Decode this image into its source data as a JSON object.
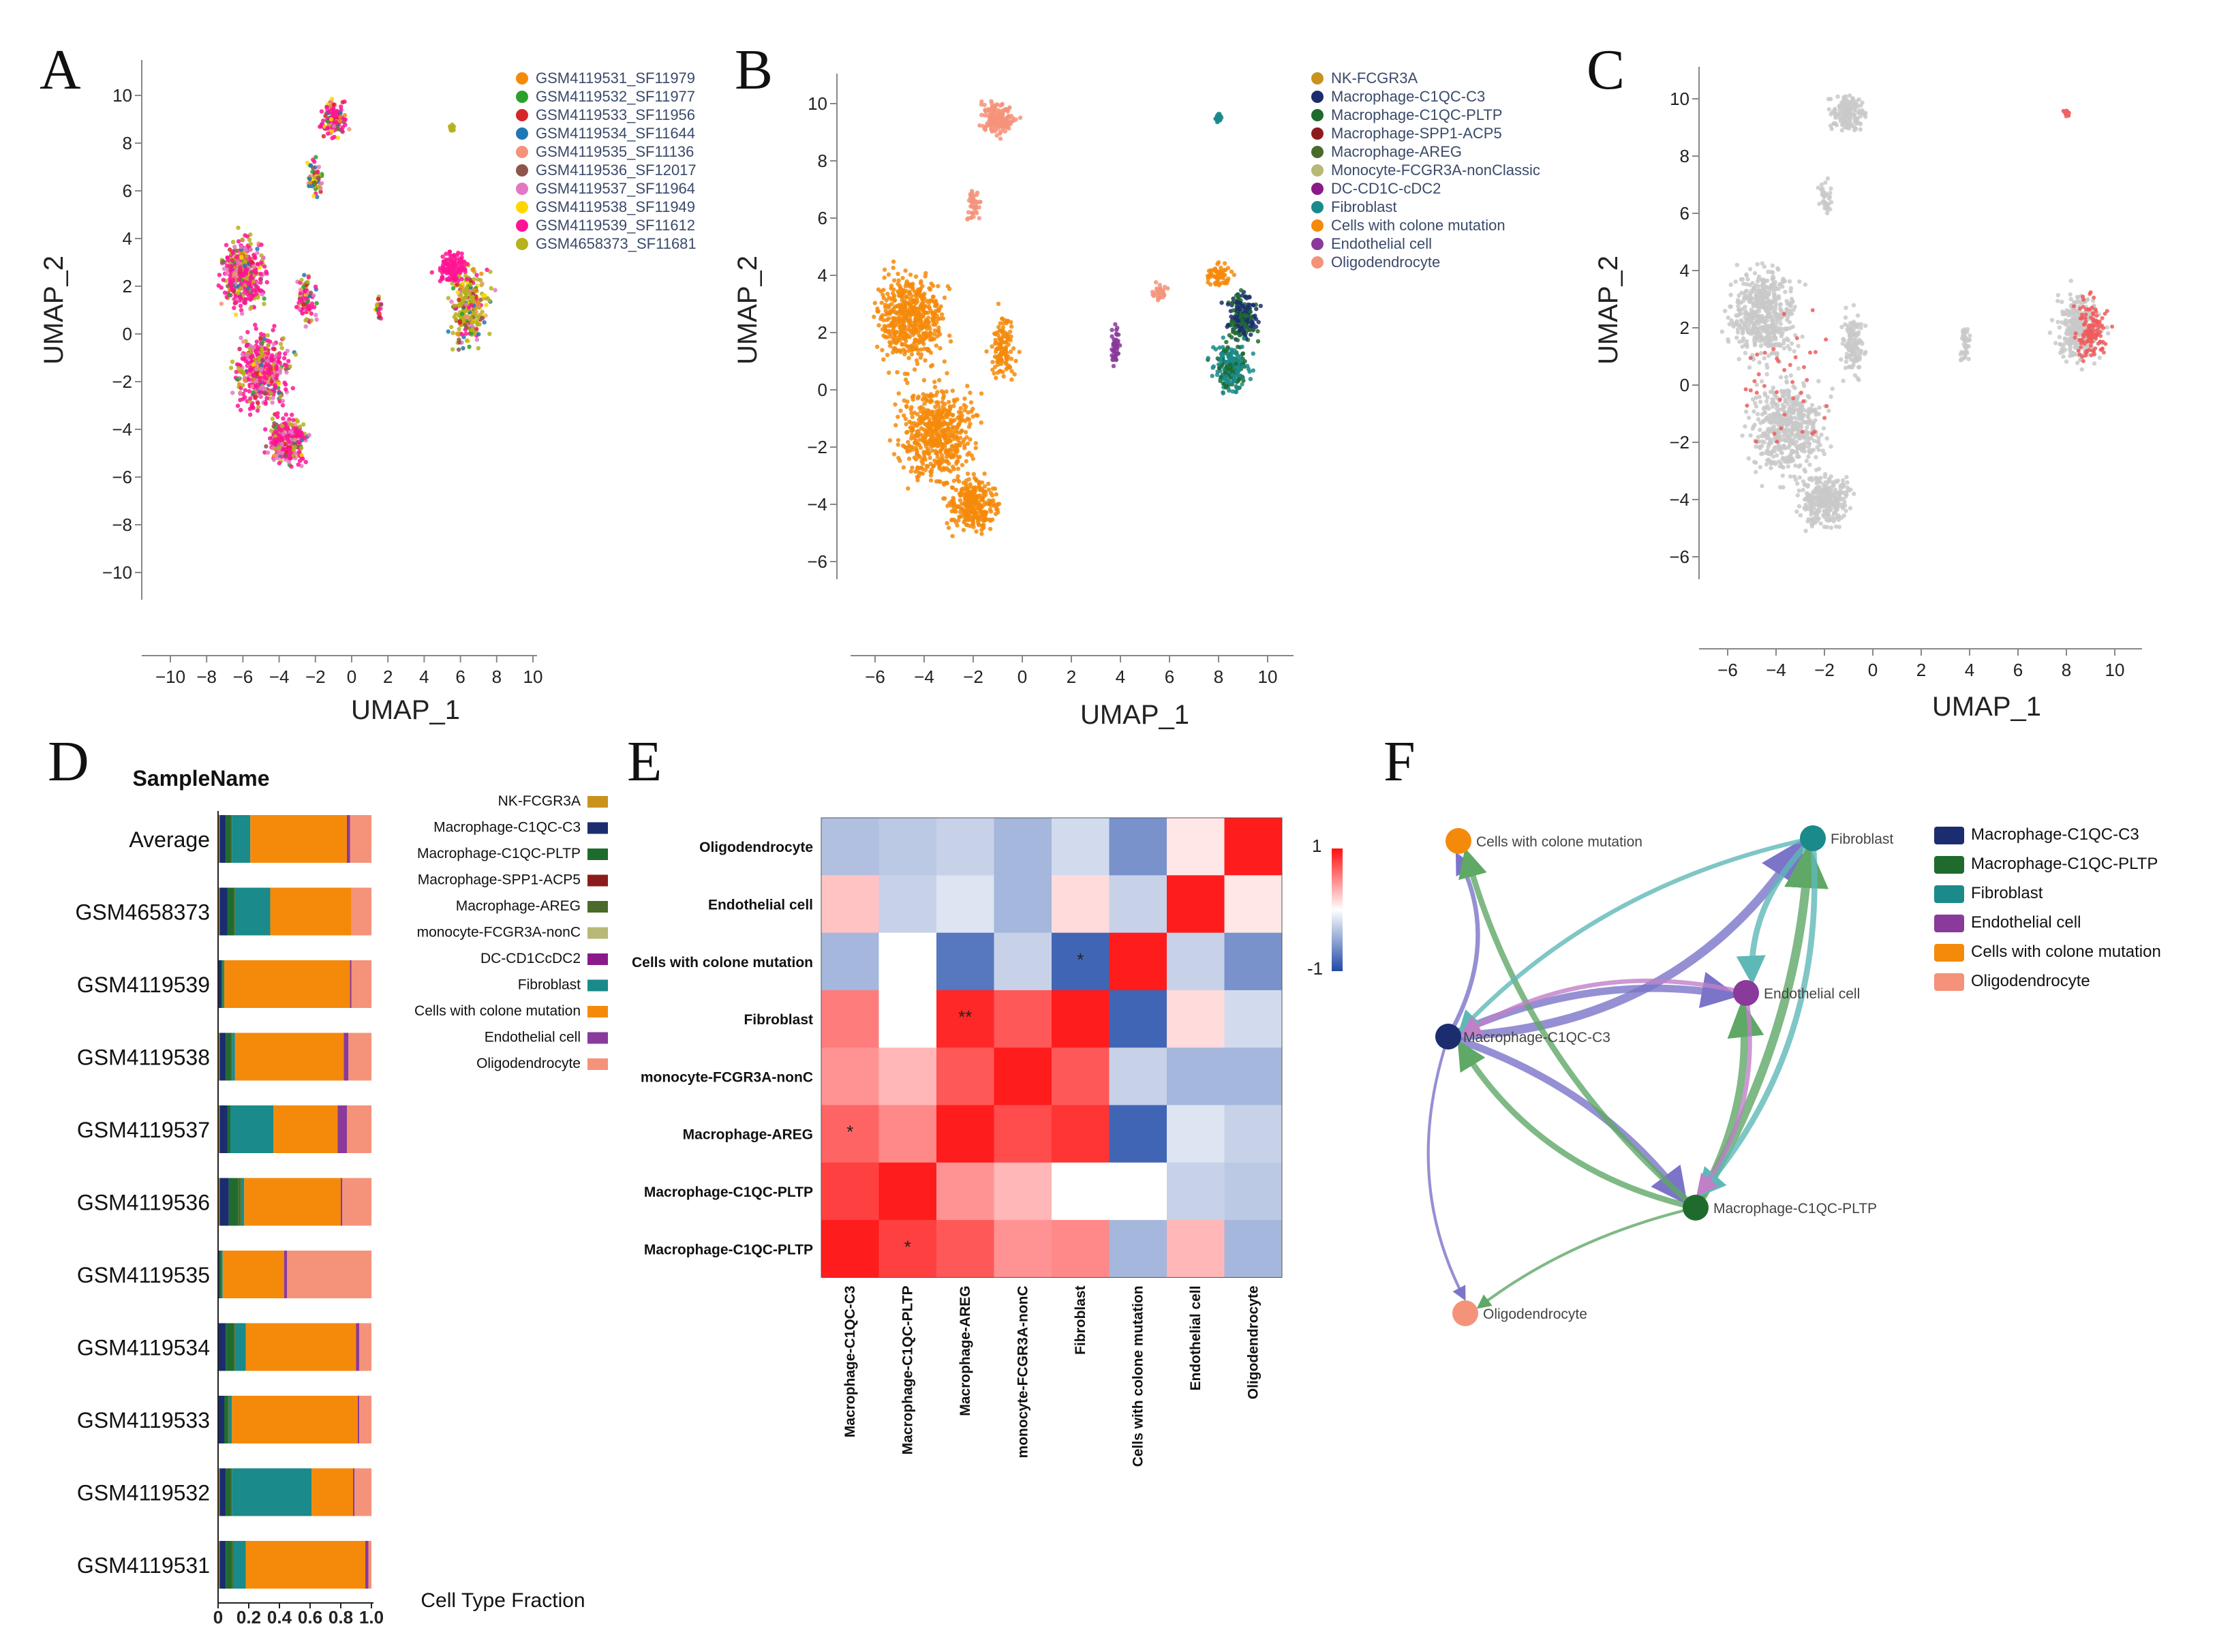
{
  "panels": [
    "A",
    "B",
    "C",
    "D",
    "E",
    "F"
  ],
  "colors": {
    "nk": "#c8921c",
    "c1qc_c3": "#1b2d6e",
    "c1qc_pltp": "#1f6b2e",
    "spp1": "#8c1c1c",
    "areg": "#4a6a2a",
    "mono": "#b8b878",
    "dc": "#8a1a8a",
    "fibro": "#1a8a8a",
    "cwcm": "#f58a0a",
    "endo": "#8a3a9a",
    "oligo": "#f4937a"
  },
  "chart_data": [
    {
      "panel": "A",
      "type": "scatter",
      "xlabel": "UMAP_1",
      "ylabel": "UMAP_2",
      "xlim": [
        -12,
        11
      ],
      "ylim": [
        -11,
        11
      ],
      "xticks": [
        -10,
        -8,
        -6,
        -4,
        -2,
        0,
        2,
        4,
        6,
        8,
        10
      ],
      "xtick_labels": [
        "−10",
        "−8",
        "−6",
        "−4",
        "−2",
        "0",
        "2",
        "4",
        "6",
        "8",
        "10"
      ],
      "yticks": [
        10,
        8,
        6,
        4,
        2,
        0,
        -2,
        -4,
        -6,
        -8,
        -10
      ],
      "ytick_labels": [
        "10",
        "8",
        "6",
        "4",
        "2",
        "0",
        "−2",
        "−4",
        "−6",
        "−8",
        "−10"
      ],
      "legend": [
        {
          "label": "GSM4119531_SF11979",
          "color": "#f58a0a"
        },
        {
          "label": "GSM4119532_SF11977",
          "color": "#2ca02c"
        },
        {
          "label": "GSM4119533_SF11956",
          "color": "#d62728"
        },
        {
          "label": "GSM4119534_SF11644",
          "color": "#1f77b4"
        },
        {
          "label": "GSM4119535_SF11136",
          "color": "#f4937a"
        },
        {
          "label": "GSM4119536_SF12017",
          "color": "#8c564b"
        },
        {
          "label": "GSM4119537_SF11964",
          "color": "#e377c2"
        },
        {
          "label": "GSM4119538_SF11949",
          "color": "#ffd700"
        },
        {
          "label": "GSM4119539_SF11612",
          "color": "#ff1493"
        },
        {
          "label": "GSM4658373_SF11681",
          "color": "#b5b21c"
        }
      ]
    },
    {
      "panel": "B",
      "type": "scatter",
      "xlabel": "UMAP_1",
      "ylabel": "UMAP_2",
      "xlim": [
        -7,
        11
      ],
      "ylim": [
        -7,
        11
      ],
      "xticks": [
        -6,
        -4,
        -2,
        0,
        2,
        4,
        6,
        8,
        10
      ],
      "xtick_labels": [
        "−6",
        "−4",
        "−2",
        "0",
        "2",
        "4",
        "6",
        "8",
        "10"
      ],
      "yticks": [
        10,
        8,
        6,
        4,
        2,
        0,
        -2,
        -4,
        -6
      ],
      "ytick_labels": [
        "10",
        "8",
        "6",
        "4",
        "2",
        "0",
        "−2",
        "−4",
        "−6"
      ],
      "legend": [
        {
          "label": "NK-FCGR3A",
          "color": "#c8921c"
        },
        {
          "label": "Macrophage-C1QC-C3",
          "color": "#1b2d6e"
        },
        {
          "label": "Macrophage-C1QC-PLTP",
          "color": "#1f6b2e"
        },
        {
          "label": "Macrophage-SPP1-ACP5",
          "color": "#8c1c1c"
        },
        {
          "label": "Macrophage-AREG",
          "color": "#4a6a2a"
        },
        {
          "label": "Monocyte-FCGR3A-nonClassic",
          "color": "#b8b878"
        },
        {
          "label": "DC-CD1C-cDC2",
          "color": "#8a1a8a"
        },
        {
          "label": "Fibroblast",
          "color": "#1a8a8a"
        },
        {
          "label": "Cells with colone mutation",
          "color": "#f58a0a"
        },
        {
          "label": "Endothelial cell",
          "color": "#8a3a9a"
        },
        {
          "label": "Oligodendrocyte",
          "color": "#f4937a"
        }
      ]
    },
    {
      "panel": "C",
      "type": "scatter",
      "xlabel": "UMAP_1",
      "ylabel": "UMAP_2",
      "xlim": [
        -7,
        11
      ],
      "ylim": [
        -7,
        11
      ],
      "xticks": [
        -6,
        -4,
        -2,
        0,
        2,
        4,
        6,
        8,
        10
      ],
      "xtick_labels": [
        "−6",
        "−4",
        "−2",
        "0",
        "2",
        "4",
        "6",
        "8",
        "10"
      ],
      "yticks": [
        10,
        8,
        6,
        4,
        2,
        0,
        -2,
        -4,
        -6
      ],
      "ytick_labels": [
        "10",
        "8",
        "6",
        "4",
        "2",
        "0",
        "−2",
        "−4",
        "−6"
      ]
    },
    {
      "panel": "D",
      "type": "bar",
      "orientation": "horizontal",
      "stacked": true,
      "title": "SampleName",
      "xlabel": "Cell Type Fraction",
      "xlim": [
        0,
        1
      ],
      "xticks": [
        0,
        0.2,
        0.4,
        0.6,
        0.8,
        1.0
      ],
      "xtick_labels": [
        "0",
        "0.2",
        "0.4",
        "0.6",
        "0.8",
        "1.0"
      ],
      "categories": [
        "Average",
        "GSM4658373",
        "GSM4119539",
        "GSM4119538",
        "GSM4119537",
        "GSM4119536",
        "GSM4119535",
        "GSM4119534",
        "GSM4119533",
        "GSM4119532",
        "GSM4119531"
      ],
      "series": [
        {
          "name": "NK-FCGR3A",
          "color": "#c8921c",
          "values": [
            0.01,
            0.01,
            0.0,
            0.01,
            0.01,
            0.01,
            0.0,
            0.0,
            0.0,
            0.01,
            0.01
          ]
        },
        {
          "name": "Macrophage-C1QC-C3",
          "color": "#1b2d6e",
          "values": [
            0.04,
            0.05,
            0.02,
            0.04,
            0.05,
            0.06,
            0.01,
            0.05,
            0.04,
            0.04,
            0.04
          ]
        },
        {
          "name": "Macrophage-C1QC-PLTP",
          "color": "#1f6b2e",
          "values": [
            0.03,
            0.04,
            0.01,
            0.03,
            0.02,
            0.06,
            0.01,
            0.05,
            0.02,
            0.03,
            0.04
          ]
        },
        {
          "name": "Macrophage-SPP1-ACP5",
          "color": "#8c1c1c",
          "values": [
            0.0,
            0.0,
            0.0,
            0.0,
            0.0,
            0.0,
            0.0,
            0.0,
            0.0,
            0.0,
            0.0
          ]
        },
        {
          "name": "Macrophage-AREG",
          "color": "#4a6a2a",
          "values": [
            0.01,
            0.01,
            0.0,
            0.01,
            0.0,
            0.02,
            0.0,
            0.01,
            0.01,
            0.01,
            0.01
          ]
        },
        {
          "name": "monocyte-FCGR3A-nonC",
          "color": "#b8b878",
          "values": [
            0.0,
            0.0,
            0.0,
            0.0,
            0.0,
            0.0,
            0.0,
            0.0,
            0.0,
            0.0,
            0.0
          ]
        },
        {
          "name": "DC-CD1CcDC2",
          "color": "#8a1a8a",
          "values": [
            0.0,
            0.0,
            0.0,
            0.0,
            0.0,
            0.0,
            0.0,
            0.0,
            0.0,
            0.0,
            0.0
          ]
        },
        {
          "name": "Fibroblast",
          "color": "#1a8a8a",
          "values": [
            0.12,
            0.23,
            0.01,
            0.02,
            0.28,
            0.02,
            0.01,
            0.07,
            0.02,
            0.52,
            0.08
          ]
        },
        {
          "name": "Cells with colone mutation",
          "color": "#f58a0a",
          "values": [
            0.63,
            0.53,
            0.82,
            0.71,
            0.42,
            0.63,
            0.4,
            0.72,
            0.82,
            0.27,
            0.78
          ]
        },
        {
          "name": "Endothelial cell",
          "color": "#8a3a9a",
          "values": [
            0.02,
            0.0,
            0.01,
            0.03,
            0.06,
            0.01,
            0.02,
            0.02,
            0.01,
            0.01,
            0.02
          ]
        },
        {
          "name": "Oligodendrocyte",
          "color": "#f4937a",
          "values": [
            0.14,
            0.13,
            0.13,
            0.15,
            0.16,
            0.19,
            0.55,
            0.08,
            0.08,
            0.11,
            0.02
          ]
        }
      ]
    },
    {
      "panel": "E",
      "type": "heatmap",
      "rows": [
        "Oligodendrocyte",
        "Endothelial cell",
        "Cells with colone mutation",
        "Fibroblast",
        "monocyte-FCGR3A-nonC",
        "Macrophage-AREG",
        "Macrophage-C1QC-PLTP",
        "Macrophage-C1QC-PLTP"
      ],
      "cols": [
        "Macrophage-C1QC-C3",
        "Macrophage-C1QC-PLTP",
        "Macrophage-AREG",
        "monocyte-FCGR3A-nonC",
        "Fibroblast",
        "Cells with colone mutation",
        "Endothelial cell",
        "Oligodendrocyte"
      ],
      "values": [
        [
          -0.35,
          -0.3,
          -0.25,
          -0.4,
          -0.2,
          -0.6,
          0.1,
          0.95
        ],
        [
          0.25,
          -0.25,
          -0.15,
          -0.4,
          0.15,
          -0.25,
          0.95,
          0.1
        ],
        [
          -0.4,
          0.0,
          -0.75,
          -0.25,
          -0.85,
          0.95,
          -0.25,
          -0.6
        ],
        [
          0.55,
          0.0,
          0.9,
          0.7,
          0.95,
          -0.85,
          0.15,
          -0.2
        ],
        [
          0.45,
          0.3,
          0.7,
          0.95,
          0.7,
          -0.25,
          -0.4,
          -0.4
        ],
        [
          0.65,
          0.5,
          0.95,
          0.75,
          0.85,
          -0.85,
          -0.15,
          -0.25
        ],
        [
          0.8,
          0.95,
          0.45,
          0.3,
          0.0,
          0.0,
          -0.25,
          -0.3
        ],
        [
          0.95,
          0.8,
          0.7,
          0.45,
          0.5,
          -0.4,
          0.3,
          -0.4
        ]
      ],
      "annotations": [
        {
          "row": 2,
          "col": 4,
          "text": "*"
        },
        {
          "row": 3,
          "col": 2,
          "text": "**"
        },
        {
          "row": 5,
          "col": 0,
          "text": "*"
        },
        {
          "row": 7,
          "col": 1,
          "text": "*"
        }
      ],
      "colorbar": {
        "min": -1,
        "max": 1,
        "max_label": "1",
        "min_label": "-1"
      }
    },
    {
      "panel": "F",
      "type": "network",
      "nodes": [
        {
          "id": "cwcm",
          "label": "Cells with colone mutation",
          "color": "#f58a0a"
        },
        {
          "id": "fibro",
          "label": "Fibroblast",
          "color": "#1a8a8a"
        },
        {
          "id": "endo",
          "label": "Endothelial cell",
          "color": "#8a3a9a"
        },
        {
          "id": "c3",
          "label": "Macrophage-C1QC-C3",
          "color": "#1b2d6e"
        },
        {
          "id": "pltp",
          "label": "Macrophage-C1QC-PLTP",
          "color": "#1f6b2e"
        },
        {
          "id": "oligo",
          "label": "Oligodendrocyte",
          "color": "#f4937a"
        }
      ],
      "edges": [
        {
          "from": "c3",
          "to": "fibro",
          "weight": 5
        },
        {
          "from": "c3",
          "to": "endo",
          "weight": 4
        },
        {
          "from": "c3",
          "to": "pltp",
          "weight": 4
        },
        {
          "from": "c3",
          "to": "cwcm",
          "weight": 2
        },
        {
          "from": "c3",
          "to": "oligo",
          "weight": 1
        },
        {
          "from": "pltp",
          "to": "fibro",
          "weight": 5
        },
        {
          "from": "pltp",
          "to": "endo",
          "weight": 4
        },
        {
          "from": "pltp",
          "to": "cwcm",
          "weight": 3
        },
        {
          "from": "pltp",
          "to": "c3",
          "weight": 3
        },
        {
          "from": "pltp",
          "to": "oligo",
          "weight": 1
        },
        {
          "from": "fibro",
          "to": "endo",
          "weight": 3
        },
        {
          "from": "fibro",
          "to": "pltp",
          "weight": 3
        },
        {
          "from": "fibro",
          "to": "c3",
          "weight": 2
        },
        {
          "from": "endo",
          "to": "c3",
          "weight": 2
        },
        {
          "from": "endo",
          "to": "pltp",
          "weight": 2
        }
      ],
      "legend": [
        {
          "label": "Macrophage-C1QC-C3",
          "color": "#1b2d6e"
        },
        {
          "label": "Macrophage-C1QC-PLTP",
          "color": "#1f6b2e"
        },
        {
          "label": "Fibroblast",
          "color": "#1a8a8a"
        },
        {
          "label": "Endothelial cell",
          "color": "#8a3a9a"
        },
        {
          "label": "Cells with colone mutation",
          "color": "#f58a0a"
        },
        {
          "label": "Oligodendrocyte",
          "color": "#f4937a"
        }
      ]
    }
  ]
}
